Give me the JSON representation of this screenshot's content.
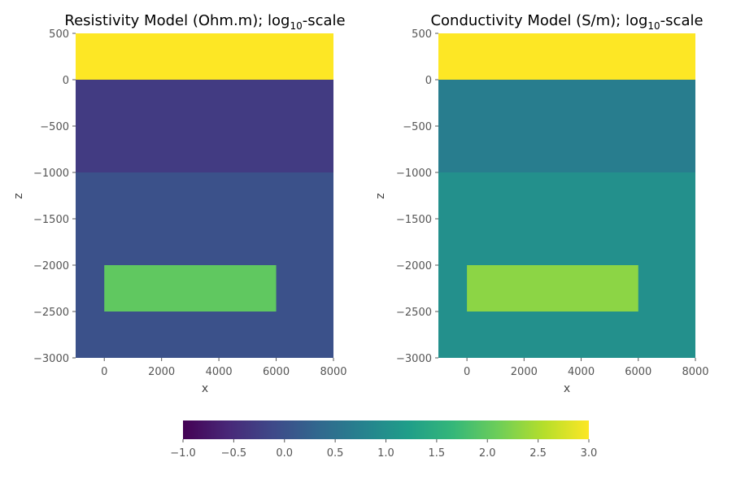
{
  "chart_data": [
    {
      "type": "heatmap",
      "title": "Resistivity Model (Ohm.m); log",
      "title_sub": "10",
      "title_suffix": "-scale",
      "xlabel": "x",
      "ylabel": "z",
      "xlim": [
        -1000,
        8000
      ],
      "ylim": [
        -3000,
        500
      ],
      "xticks": [
        0,
        2000,
        4000,
        6000,
        8000
      ],
      "yticks": [
        500,
        0,
        -500,
        -1000,
        -1500,
        -2000,
        -2500,
        -3000
      ],
      "xtick_labels": [
        "0",
        "2000",
        "4000",
        "6000",
        "8000"
      ],
      "ytick_labels": [
        "500",
        "0",
        "−500",
        "−1000",
        "−1500",
        "−2000",
        "−2500",
        "−3000"
      ],
      "regions": [
        {
          "name": "air",
          "x": [
            -1000,
            8000
          ],
          "z": [
            0,
            500
          ],
          "value": 3.0
        },
        {
          "name": "upper-layer",
          "x": [
            -1000,
            8000
          ],
          "z": [
            -1000,
            0
          ],
          "value": -0.3
        },
        {
          "name": "lower-layer",
          "x": [
            -1000,
            8000
          ],
          "z": [
            -3000,
            -1000
          ],
          "value": 0.0
        },
        {
          "name": "block",
          "x": [
            0,
            6000
          ],
          "z": [
            -2500,
            -2000
          ],
          "value": 2.0
        }
      ]
    },
    {
      "type": "heatmap",
      "title": "Conductivity Model (S/m); log",
      "title_sub": "10",
      "title_suffix": "-scale",
      "xlabel": "x",
      "ylabel": "z",
      "xlim": [
        -1000,
        8000
      ],
      "ylim": [
        -3000,
        500
      ],
      "xticks": [
        0,
        2000,
        4000,
        6000,
        8000
      ],
      "yticks": [
        500,
        0,
        -500,
        -1000,
        -1500,
        -2000,
        -2500,
        -3000
      ],
      "xtick_labels": [
        "0",
        "2000",
        "4000",
        "6000",
        "8000"
      ],
      "ytick_labels": [
        "500",
        "0",
        "−500",
        "−1000",
        "−1500",
        "−2000",
        "−2500",
        "−3000"
      ],
      "regions": [
        {
          "name": "air",
          "x": [
            -1000,
            8000
          ],
          "z": [
            0,
            500
          ],
          "value": 3.0
        },
        {
          "name": "upper-layer",
          "x": [
            -1000,
            8000
          ],
          "z": [
            -1000,
            0
          ],
          "value": 0.7
        },
        {
          "name": "lower-layer",
          "x": [
            -1000,
            8000
          ],
          "z": [
            -3000,
            -1000
          ],
          "value": 1.0
        },
        {
          "name": "block",
          "x": [
            0,
            6000
          ],
          "z": [
            -2500,
            -2000
          ],
          "value": 2.3
        }
      ]
    }
  ],
  "colorbar": {
    "colormap": "viridis",
    "range": [
      -1.0,
      3.0
    ],
    "ticks": [
      -1.0,
      -0.5,
      0.0,
      0.5,
      1.0,
      1.5,
      2.0,
      2.5,
      3.0
    ],
    "tick_labels": [
      "−1.0",
      "−0.5",
      "0.0",
      "0.5",
      "1.0",
      "1.5",
      "2.0",
      "2.5",
      "3.0"
    ],
    "placement": "bottom-center",
    "colors": [
      "#440154",
      "#482878",
      "#3e4989",
      "#31688e",
      "#26828e",
      "#1f9e89",
      "#35b779",
      "#6ece58",
      "#b5de2b",
      "#fde725"
    ]
  }
}
